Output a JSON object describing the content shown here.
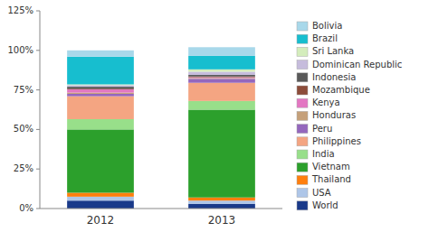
{
  "chart_data": {
    "type": "bar",
    "stacked": true,
    "categories": [
      "2012",
      "2013"
    ],
    "series": [
      {
        "name": "World",
        "color": "#1a3a8a",
        "values": [
          0.05,
          0.03
        ]
      },
      {
        "name": "USA",
        "color": "#aec6e8",
        "values": [
          0.025,
          0.02
        ]
      },
      {
        "name": "Thailand",
        "color": "#ff7f0e",
        "values": [
          0.025,
          0.02
        ]
      },
      {
        "name": "Vietnam",
        "color": "#2ca02c",
        "values": [
          0.4,
          0.555
        ]
      },
      {
        "name": "India",
        "color": "#98df8a",
        "values": [
          0.065,
          0.055
        ]
      },
      {
        "name": "Philippines",
        "color": "#f4a582",
        "values": [
          0.145,
          0.115
        ]
      },
      {
        "name": "Peru",
        "color": "#9467bd",
        "values": [
          0.015,
          0.025
        ]
      },
      {
        "name": "Honduras",
        "color": "#c5a07a",
        "values": [
          0.008,
          0.005
        ]
      },
      {
        "name": "Kenya",
        "color": "#e377c2",
        "values": [
          0.02,
          0.005
        ]
      },
      {
        "name": "Mozambique",
        "color": "#8c4c3a",
        "values": [
          0.005,
          0.005
        ]
      },
      {
        "name": "Indonesia",
        "color": "#595959",
        "values": [
          0.012,
          0.01
        ]
      },
      {
        "name": "Dominican Republic",
        "color": "#c6bcdc",
        "values": [
          0.01,
          0.02
        ]
      },
      {
        "name": "Sri Lanka",
        "color": "#d4edbc",
        "values": [
          0.005,
          0.015
        ]
      },
      {
        "name": "Brazil",
        "color": "#17becf",
        "values": [
          0.175,
          0.085
        ]
      },
      {
        "name": "Bolivia",
        "color": "#a8d8ea",
        "values": [
          0.04,
          0.055
        ]
      }
    ],
    "ylim": [
      0,
      1.25
    ],
    "yticks": [
      {
        "value": 0,
        "label": "0%"
      },
      {
        "value": 0.25,
        "label": "25%"
      },
      {
        "value": 0.5,
        "label": "50%"
      },
      {
        "value": 0.75,
        "label": "75%"
      },
      {
        "value": 1.0,
        "label": "100%"
      },
      {
        "value": 1.25,
        "label": "125%"
      }
    ],
    "grid": false,
    "legend": "right"
  }
}
